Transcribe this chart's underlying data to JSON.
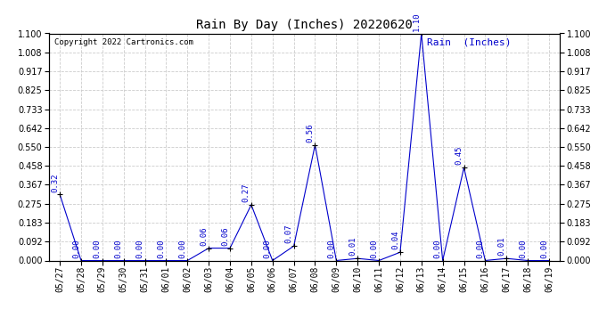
{
  "title": "Rain By Day (Inches) 20220620",
  "copyright": "Copyright 2022 Cartronics.com",
  "legend_label": "Rain  (Inches)",
  "dates": [
    "05/27",
    "05/28",
    "05/29",
    "05/30",
    "05/31",
    "06/01",
    "06/02",
    "06/03",
    "06/04",
    "06/05",
    "06/06",
    "06/07",
    "06/08",
    "06/09",
    "06/10",
    "06/11",
    "06/12",
    "06/13",
    "06/14",
    "06/15",
    "06/16",
    "06/17",
    "06/18",
    "06/19"
  ],
  "values": [
    0.32,
    0.0,
    0.0,
    0.0,
    0.0,
    0.0,
    0.0,
    0.06,
    0.06,
    0.27,
    0.0,
    0.07,
    0.56,
    0.0,
    0.01,
    0.0,
    0.04,
    1.1,
    0.0,
    0.45,
    0.0,
    0.01,
    0.0,
    0.0
  ],
  "line_color": "#0000cc",
  "marker_color": "#000000",
  "label_color": "#0000cc",
  "bg_color": "#ffffff",
  "grid_color": "#cccccc",
  "ylim": [
    0.0,
    1.1
  ],
  "yticks": [
    0.0,
    0.092,
    0.183,
    0.275,
    0.367,
    0.458,
    0.55,
    0.642,
    0.733,
    0.825,
    0.917,
    1.008,
    1.1
  ],
  "title_fontsize": 10,
  "tick_fontsize": 7,
  "copyright_fontsize": 6.5,
  "legend_fontsize": 8,
  "annotation_fontsize": 6.5
}
